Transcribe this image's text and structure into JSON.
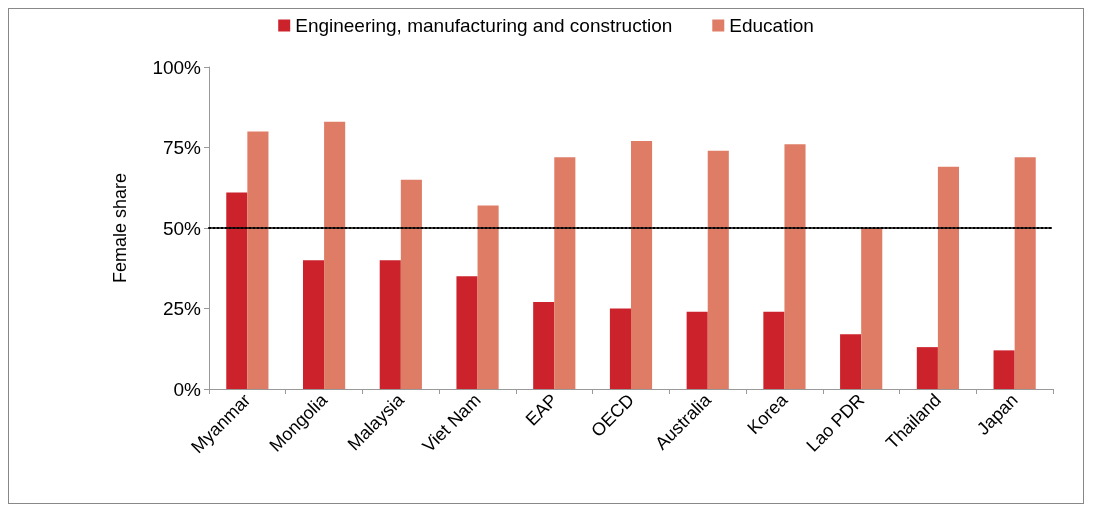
{
  "chart_data": {
    "type": "bar",
    "ylabel": "Female share",
    "categories": [
      "Myanmar",
      "Mongolia",
      "Malaysia",
      "Viet Nam",
      "EAP",
      "OECD",
      "Australia",
      "Korea",
      "Lao PDR",
      "Thailand",
      "Japan"
    ],
    "series": [
      {
        "name": "Engineering, manufacturing and construction",
        "color": "#cc222b",
        "values": [
          61,
          40,
          40,
          35,
          27,
          25,
          24,
          24,
          17,
          13,
          12
        ]
      },
      {
        "name": "Education",
        "color": "#df7c66",
        "values": [
          80,
          83,
          65,
          57,
          72,
          77,
          74,
          76,
          50,
          69,
          72
        ]
      }
    ],
    "ylim": [
      0,
      100
    ],
    "yticks": [
      {
        "value": 0,
        "label": "0%"
      },
      {
        "value": 25,
        "label": "25%"
      },
      {
        "value": 50,
        "label": "50%"
      },
      {
        "value": 75,
        "label": "75%"
      },
      {
        "value": 100,
        "label": "100%"
      }
    ],
    "ref_lines": [
      {
        "axis": "y",
        "value": 50,
        "color": "#000000",
        "line_style": "dotted"
      }
    ],
    "grid": false,
    "legend": "top"
  }
}
